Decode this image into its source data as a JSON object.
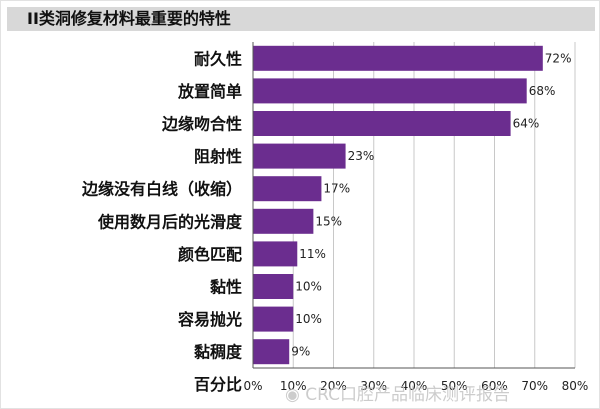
{
  "chart_data": {
    "type": "bar",
    "orientation": "horizontal",
    "title": "II类洞修复材料最重要的特性",
    "categories": [
      "耐久性",
      "放置简单",
      "边缘吻合性",
      "阻射性",
      "边缘没有白线（收缩）",
      "使用数月后的光滑度",
      "颜色匹配",
      "黏性",
      "容易抛光",
      "黏稠度"
    ],
    "values": [
      72,
      68,
      64,
      23,
      17,
      15,
      11,
      10,
      10,
      9
    ],
    "value_labels": [
      "72%",
      "68%",
      "64%",
      "23%",
      "17%",
      "15%",
      "11%",
      "10%",
      "10%",
      "9%"
    ],
    "xlabel": "百分比",
    "xlim": [
      0,
      80
    ],
    "xticks": [
      0,
      10,
      20,
      30,
      40,
      50,
      60,
      70,
      80
    ],
    "xtick_labels": [
      "0%",
      "10%",
      "20%",
      "30%",
      "40%",
      "50%",
      "60%",
      "70%",
      "80%"
    ],
    "grid": true,
    "bar_color": "#6b2d8f"
  },
  "watermark": "CRC口腔产品临床测评报告"
}
